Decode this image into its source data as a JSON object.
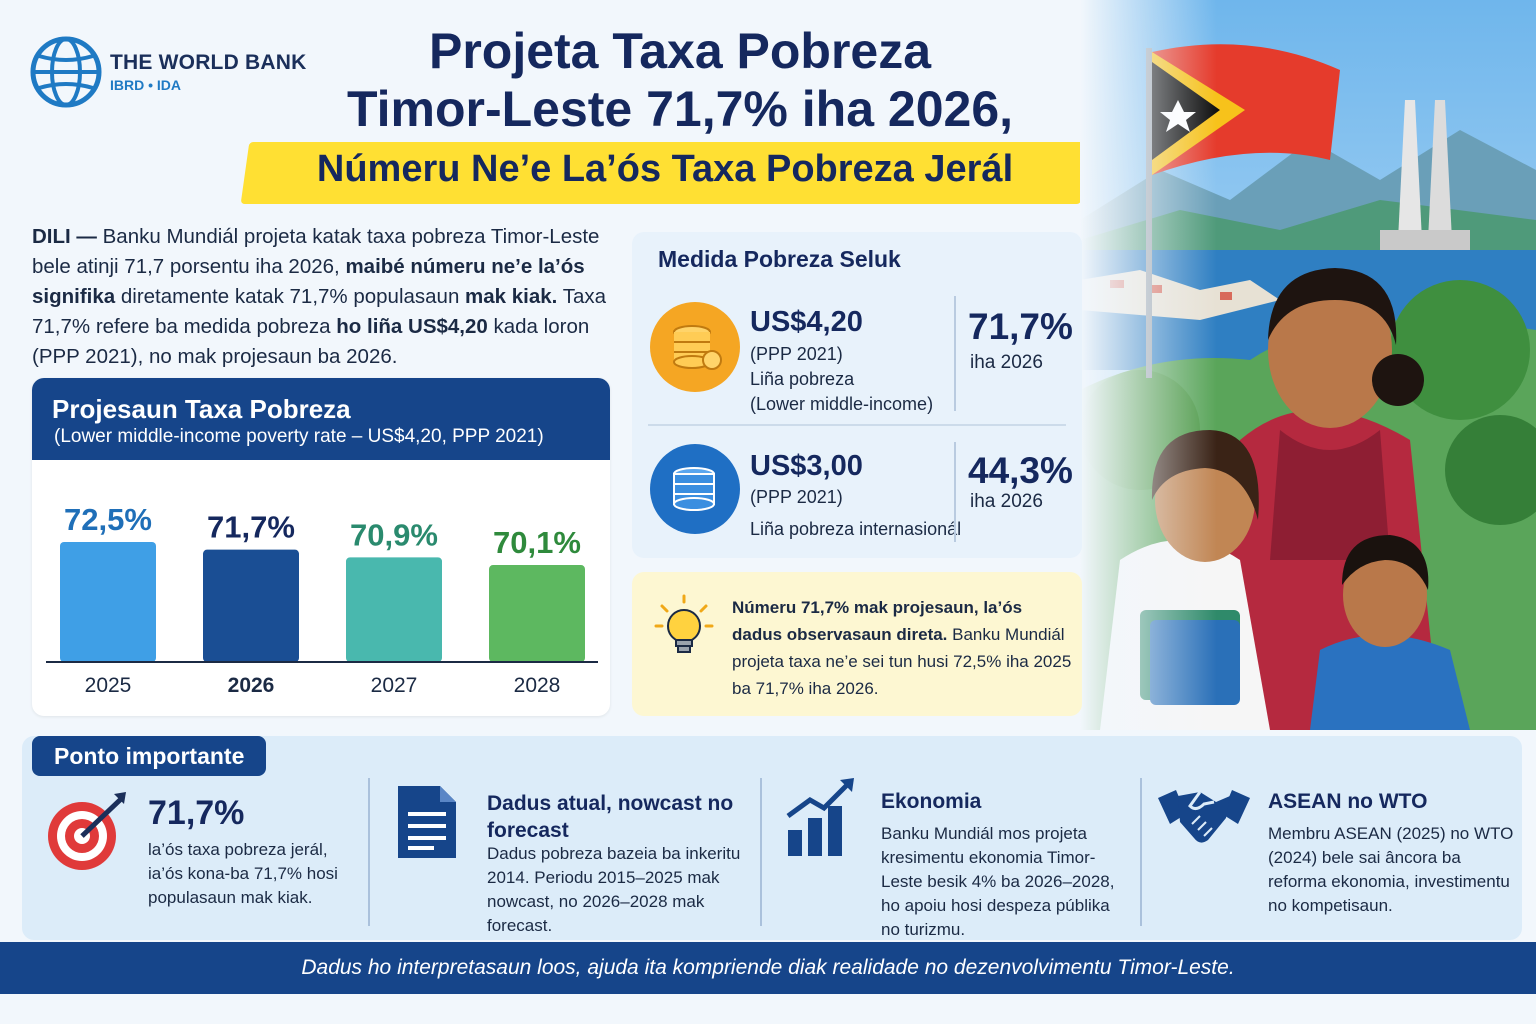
{
  "logo": {
    "name": "THE WORLD BANK",
    "sub": "IBRD • IDA"
  },
  "title": {
    "line1": "Projeta Taxa Pobreza",
    "line2": "Timor-Leste 71,7% iha 2026,",
    "subtitle": "Númeru Ne’e La’ós Taxa Pobreza Jerál"
  },
  "intro": {
    "p1": "DILI —",
    "p2": " Banku Mundiál projeta katak taxa pobreza Timor-Leste bele atinji 71,7 porsentu iha 2026, ",
    "p3": "maibé númeru ne’e la’ós signifika",
    "p4": " diretamente katak 71,7% populasaun ",
    "p5": "mak kiak.",
    "p6": " Taxa 71,7% refere ba medida pobreza ",
    "p7": "ho liña US$4,20",
    "p8": " kada loron (PPP 2021), no mak projesaun ba 2026."
  },
  "chart_card": {
    "title": "Projesaun Taxa Pobreza",
    "subtitle": "(Lower middle-income poverty rate – US$4,20, PPP 2021)"
  },
  "chart_data": {
    "type": "bar",
    "title": "Projesaun Taxa Pobreza",
    "subtitle": "(Lower middle-income poverty rate – US$4,20, PPP 2021)",
    "categories": [
      "2025",
      "2026",
      "2027",
      "2028"
    ],
    "values": [
      72.5,
      71.7,
      70.9,
      70.1
    ],
    "data_labels": [
      "72,5%",
      "71,7%",
      "70,9%",
      "70,1%"
    ],
    "bar_colors": [
      "#3f9fe6",
      "#1a4e94",
      "#49b8ae",
      "#5db860"
    ],
    "label_colors": [
      "#1f6fb8",
      "#15285e",
      "#2a8a6e",
      "#2f8a3c"
    ],
    "bold_category": "2026",
    "ylim": [
      0,
      72.5
    ],
    "grid": false
  },
  "measures": {
    "title": "Medida Pobreza Seluk",
    "items": [
      {
        "price": "US$4,20",
        "ppp": "(PPP 2021)",
        "line1": "Liña pobreza",
        "line2": "(Lower middle-income)",
        "pct": "71,7%",
        "year": "iha 2026",
        "icon": "coins-stack-icon",
        "color": "#f4a623"
      },
      {
        "price": "US$3,00",
        "ppp": "(PPP 2021)",
        "line1": "Liña pobreza internasionál",
        "line2": "",
        "pct": "44,3%",
        "year": "iha 2026",
        "icon": "coins-stack-icon",
        "color": "#1f6fc4"
      }
    ]
  },
  "note": {
    "bold": "Númeru 71,7% mak projesaun, la’ós dadus observasaun direta.",
    "text": " Banku Mundiál projeta taxa ne’e sei tun husi 72,5% iha 2025 ba 71,7% iha 2026.",
    "icon": "lightbulb-icon"
  },
  "key_points": {
    "label": "Ponto importante",
    "items": [
      {
        "head": "71,7%",
        "text": "la’ós taxa pobreza jerál, ia’ós kona-ba 71,7% hosi populasaun mak kiak.",
        "icon": "target-icon"
      },
      {
        "head": "Dadus atual, nowcast no forecast",
        "text": "Dadus pobreza bazeia ba inkeritu 2014. Periodu 2015–2025 mak nowcast, no 2026–2028 mak forecast.",
        "icon": "document-icon"
      },
      {
        "head": "Ekonomia",
        "text": "Banku Mundiál mos projeta kresimentu ekonomia Timor-Leste besik 4% ba 2026–2028, ho apoiu hosi despeza públika no turizmu.",
        "icon": "growth-chart-icon"
      },
      {
        "head": "ASEAN no WTO",
        "text": "Membru ASEAN (2025) no WTO (2024) bele sai âncora ba reforma ekonomia, investimentu no kompetisaun.",
        "icon": "handshake-icon"
      }
    ]
  },
  "footer": "Dadus ho interpretasaun loos, ajuda ita kompriende diak realidade no dezenvolvimentu Timor-Leste."
}
